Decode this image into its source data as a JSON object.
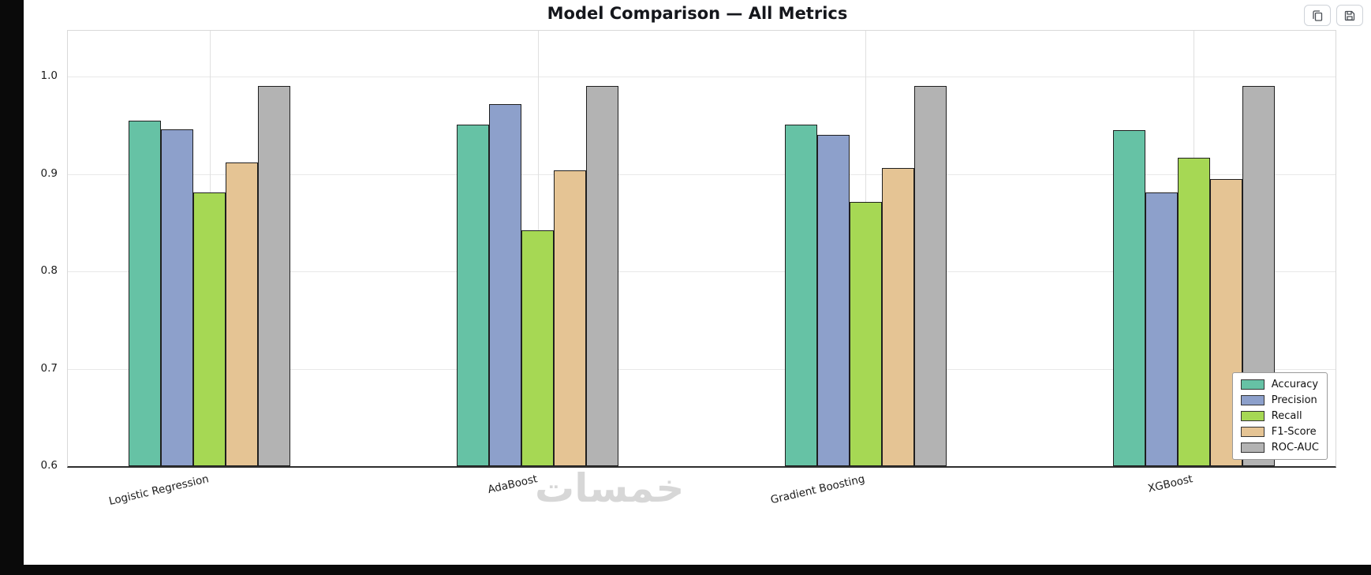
{
  "toolbar": {
    "copy_icon": "copy-icon",
    "save_icon": "save-icon"
  },
  "watermark": {
    "text": "خمسات"
  },
  "chart_data": {
    "type": "bar",
    "title": "Model Comparison — All Metrics",
    "categories": [
      "Logistic Regression",
      "AdaBoost",
      "Gradient Boosting",
      "XGBoost"
    ],
    "series": [
      {
        "name": "Accuracy",
        "color": "#66c2a5",
        "values": [
          0.955,
          0.951,
          0.951,
          0.945
        ]
      },
      {
        "name": "Precision",
        "color": "#8da0cb",
        "values": [
          0.946,
          0.972,
          0.94,
          0.881
        ]
      },
      {
        "name": "Recall",
        "color": "#a6d854",
        "values": [
          0.881,
          0.842,
          0.871,
          0.917
        ]
      },
      {
        "name": "F1-Score",
        "color": "#e5c494",
        "values": [
          0.912,
          0.904,
          0.906,
          0.895
        ]
      },
      {
        "name": "ROC-AUC",
        "color": "#b3b3b3",
        "values": [
          0.99,
          0.99,
          0.99,
          0.99
        ]
      }
    ],
    "ylim": [
      0.6,
      1.047
    ],
    "yticks": [
      0.6,
      0.7,
      0.8,
      0.9,
      1.0
    ],
    "xlabel": "",
    "ylabel": "",
    "grid": true,
    "bar_edge_color": "#1f1f1f",
    "legend_position": "lower right",
    "xtick_rotation": 13
  }
}
